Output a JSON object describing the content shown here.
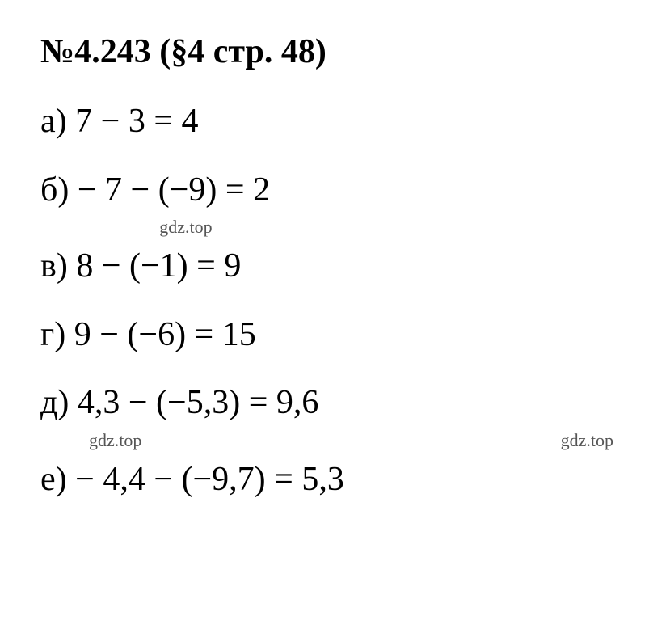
{
  "title": "№4.243 (§4 стр. 48)",
  "equations": {
    "a": "а) 7 − 3 = 4",
    "b": "б) − 7 − (−9) = 2",
    "v": "в) 8 − (−1) = 9",
    "g": "г) 9 − (−6) = 15",
    "d": "д) 4,3 − (−5,3) = 9,6",
    "e": "е) − 4,4 − (−9,7) = 5,3"
  },
  "watermark": "gdz.top",
  "styling": {
    "title_fontsize": 42,
    "title_fontweight": "bold",
    "equation_fontsize": 42,
    "watermark_fontsize": 22,
    "watermark_color": "#555555",
    "text_color": "#000000",
    "background_color": "#ffffff",
    "font_family": "Times New Roman"
  }
}
